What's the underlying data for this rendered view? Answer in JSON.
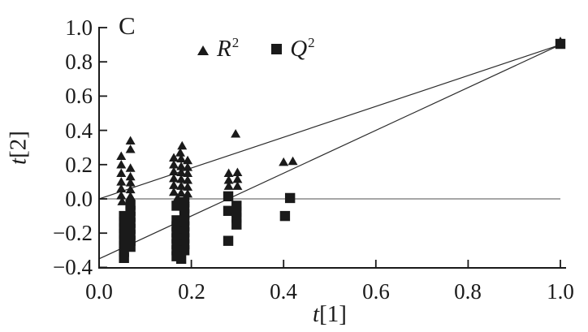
{
  "figure": {
    "background": "#ffffff",
    "ink_color": "#1a1a1a",
    "zero_line_color": "#8a8a8a"
  },
  "chart_data": {
    "type": "scatter",
    "title": "C",
    "xlabel": "t[1]",
    "ylabel": "t[2]",
    "xlabel_italic": "t",
    "xlabel_rest": "[1]",
    "ylabel_italic": "t",
    "ylabel_rest": "[2]",
    "xlim": [
      0.0,
      1.0
    ],
    "ylim": [
      -0.4,
      1.0
    ],
    "grid": false,
    "legend_position": "top-inside",
    "xticks": [
      0.0,
      0.2,
      0.4,
      0.6,
      0.8,
      1.0
    ],
    "xtick_labels": [
      "0.0",
      "0.2",
      "0.4",
      "0.6",
      "0.8",
      "1.0"
    ],
    "yticks": [
      1.0,
      0.8,
      0.6,
      0.4,
      0.2,
      0.0,
      -0.2,
      -0.4
    ],
    "ytick_labels": [
      "1.0",
      "0.8",
      "0.6",
      "0.4",
      "0.2",
      "0.0",
      "−0.2",
      "−0.4"
    ],
    "legend": {
      "items": [
        {
          "id": "r2",
          "label": "R²",
          "base": "R",
          "sup": "2",
          "marker": "triangle"
        },
        {
          "id": "q2",
          "label": "Q²",
          "base": "Q",
          "sup": "2",
          "marker": "square"
        }
      ]
    },
    "reference_lines": [
      {
        "name": "zero-line",
        "x1": 0.0,
        "y1": 0.0,
        "x2": 1.0,
        "y2": 0.0,
        "color": "#8a8a8a",
        "width": 1.4
      },
      {
        "name": "r2-fit-line",
        "x1": 0.0,
        "y1": 0.0,
        "x2": 1.0,
        "y2": 0.9,
        "color": "#2b2b2b",
        "width": 1.2
      },
      {
        "name": "q2-fit-line",
        "x1": 0.0,
        "y1": -0.35,
        "x2": 1.0,
        "y2": 0.9,
        "color": "#2b2b2b",
        "width": 1.2
      }
    ],
    "series": [
      {
        "name": "R2",
        "marker": "triangle",
        "color": "#1a1a1a",
        "points": [
          [
            0.048,
            0.25
          ],
          [
            0.048,
            0.2
          ],
          [
            0.048,
            0.15
          ],
          [
            0.048,
            0.1
          ],
          [
            0.048,
            0.06
          ],
          [
            0.048,
            0.02
          ],
          [
            0.05,
            -0.015
          ],
          [
            0.068,
            0.34
          ],
          [
            0.068,
            0.29
          ],
          [
            0.068,
            0.18
          ],
          [
            0.068,
            0.13
          ],
          [
            0.068,
            0.095
          ],
          [
            0.068,
            0.055
          ],
          [
            0.068,
            0.015
          ],
          [
            0.18,
            0.31
          ],
          [
            0.176,
            0.27
          ],
          [
            0.162,
            0.24
          ],
          [
            0.178,
            0.235
          ],
          [
            0.192,
            0.225
          ],
          [
            0.162,
            0.2
          ],
          [
            0.178,
            0.19
          ],
          [
            0.192,
            0.185
          ],
          [
            0.162,
            0.16
          ],
          [
            0.178,
            0.155
          ],
          [
            0.192,
            0.15
          ],
          [
            0.162,
            0.12
          ],
          [
            0.178,
            0.115
          ],
          [
            0.192,
            0.11
          ],
          [
            0.162,
            0.08
          ],
          [
            0.178,
            0.075
          ],
          [
            0.192,
            0.07
          ],
          [
            0.162,
            0.04
          ],
          [
            0.178,
            0.035
          ],
          [
            0.192,
            0.03
          ],
          [
            0.17,
            0.005
          ],
          [
            0.186,
            0.0
          ],
          [
            0.296,
            0.38
          ],
          [
            0.281,
            0.15
          ],
          [
            0.3,
            0.155
          ],
          [
            0.281,
            0.11
          ],
          [
            0.3,
            0.115
          ],
          [
            0.281,
            0.075
          ],
          [
            0.3,
            0.075
          ],
          [
            0.4,
            0.215
          ],
          [
            0.42,
            0.22
          ],
          [
            1.0,
            0.92
          ]
        ]
      },
      {
        "name": "Q2",
        "marker": "square",
        "color": "#1a1a1a",
        "points": [
          [
            0.054,
            -0.1
          ],
          [
            0.054,
            -0.135
          ],
          [
            0.054,
            -0.17
          ],
          [
            0.054,
            -0.205
          ],
          [
            0.054,
            -0.24
          ],
          [
            0.054,
            -0.275
          ],
          [
            0.054,
            -0.31
          ],
          [
            0.054,
            -0.345
          ],
          [
            0.068,
            -0.035
          ],
          [
            0.068,
            -0.07
          ],
          [
            0.068,
            -0.105
          ],
          [
            0.068,
            -0.14
          ],
          [
            0.068,
            -0.175
          ],
          [
            0.068,
            -0.21
          ],
          [
            0.068,
            -0.245
          ],
          [
            0.068,
            -0.28
          ],
          [
            0.168,
            -0.04
          ],
          [
            0.185,
            -0.02
          ],
          [
            0.185,
            -0.055
          ],
          [
            0.185,
            -0.09
          ],
          [
            0.168,
            -0.125
          ],
          [
            0.185,
            -0.125
          ],
          [
            0.168,
            -0.16
          ],
          [
            0.185,
            -0.16
          ],
          [
            0.168,
            -0.195
          ],
          [
            0.185,
            -0.195
          ],
          [
            0.168,
            -0.23
          ],
          [
            0.185,
            -0.23
          ],
          [
            0.168,
            -0.265
          ],
          [
            0.185,
            -0.265
          ],
          [
            0.168,
            -0.3
          ],
          [
            0.185,
            -0.3
          ],
          [
            0.168,
            -0.335
          ],
          [
            0.178,
            -0.35
          ],
          [
            0.28,
            0.015
          ],
          [
            0.28,
            -0.07
          ],
          [
            0.298,
            -0.04
          ],
          [
            0.298,
            -0.075
          ],
          [
            0.298,
            -0.11
          ],
          [
            0.298,
            -0.15
          ],
          [
            0.28,
            -0.245
          ],
          [
            0.414,
            0.005
          ],
          [
            0.403,
            -0.1
          ],
          [
            1.0,
            0.905
          ]
        ]
      }
    ]
  }
}
